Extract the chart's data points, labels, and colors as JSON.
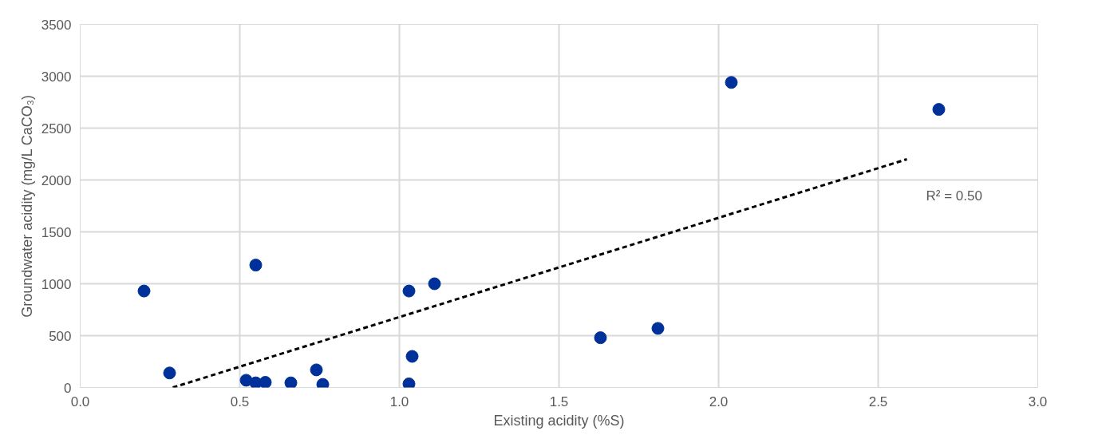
{
  "chart_data": {
    "type": "scatter",
    "xlabel": "Existing acidity (%S)",
    "ylabel": "Groundwater acidity (mg/L CaCO₃)",
    "xlim": [
      0,
      3
    ],
    "xticks": [
      {
        "value": 0,
        "label": "0.0"
      },
      0.5,
      {
        "value": 1,
        "label": "1.0"
      },
      1.5,
      {
        "value": 2,
        "label": "2.0"
      },
      2.5,
      {
        "value": 3,
        "label": "3.0"
      }
    ],
    "ylim": [
      0,
      3500
    ],
    "yticks": [
      0,
      500,
      1000,
      1500,
      2000,
      2500,
      3000,
      3500
    ],
    "grid": true,
    "marker": "circle",
    "series": [
      {
        "color": "#00309a",
        "x": [
          0.2,
          0.28,
          0.52,
          0.55,
          0.55,
          0.58,
          0.66,
          0.74,
          0.76,
          1.03,
          1.03,
          1.04,
          1.11,
          1.63,
          1.81,
          2.04,
          2.69
        ],
        "values": [
          930,
          140,
          70,
          1180,
          45,
          50,
          45,
          170,
          30,
          35,
          930,
          300,
          1000,
          480,
          570,
          2940,
          2680
        ]
      },
      {
        "type": "line",
        "marker": "none",
        "color": "#000000",
        "line_style": "dashed",
        "x": [
          0.29,
          2.59
        ],
        "values": [
          0,
          2200
        ]
      }
    ],
    "annotations": [
      "R² = 0.50"
    ]
  }
}
